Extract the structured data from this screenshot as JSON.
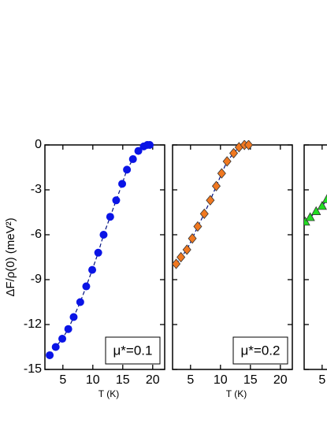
{
  "chart_data": [
    {
      "type": "scatter",
      "ylabel": "ΔF/ρ(0) (meV²)",
      "xlabel": "T (K)",
      "legend": "μ*=0.1",
      "marker": "circle",
      "color": "#0a14e6",
      "xlim": [
        2,
        22
      ],
      "xticks": [
        5,
        10,
        15,
        20
      ],
      "ylim": [
        -15,
        0
      ],
      "yticks": [
        0,
        -3,
        -6,
        -9,
        -12,
        -15
      ],
      "x": [
        2.8,
        3.8,
        4.9,
        5.9,
        6.8,
        7.9,
        8.9,
        9.9,
        10.9,
        11.8,
        12.9,
        13.9,
        14.9,
        15.7,
        16.7,
        17.6,
        18.5,
        19.1,
        19.5
      ],
      "values": [
        -14.05,
        -13.5,
        -12.95,
        -12.3,
        -11.5,
        -10.5,
        -9.45,
        -8.35,
        -7.2,
        -6.0,
        -4.8,
        -3.7,
        -2.6,
        -1.65,
        -0.95,
        -0.4,
        -0.1,
        0,
        0
      ]
    },
    {
      "type": "scatter",
      "xlabel": "T (K)",
      "legend": "μ*=0.2",
      "marker": "diamond",
      "color": "#f07820",
      "xlim": [
        2,
        22
      ],
      "xticks": [
        5,
        10,
        15,
        20
      ],
      "ylim": [
        -15,
        0
      ],
      "yticks": [
        0,
        -3,
        -6,
        -9,
        -12,
        -15
      ],
      "x": [
        2.6,
        3.4,
        4.4,
        5.3,
        6.2,
        7.3,
        8.3,
        9.3,
        10.2,
        11.1,
        12.2,
        13.1,
        14.0,
        14.7
      ],
      "values": [
        -7.95,
        -7.5,
        -7.0,
        -6.25,
        -5.45,
        -4.6,
        -3.7,
        -2.75,
        -1.9,
        -1.1,
        -0.55,
        -0.15,
        0,
        0
      ]
    },
    {
      "type": "scatter",
      "marker": "triangle",
      "color": "#22dd22",
      "xlim": [
        2,
        22
      ],
      "xticks": [
        5
      ],
      "ylim": [
        -15,
        0
      ],
      "yticks": [
        0,
        -3,
        -6,
        -9,
        -12,
        -15
      ],
      "x": [
        2.2,
        3.0,
        4.0,
        5.0,
        5.8
      ],
      "values": [
        -5.15,
        -4.85,
        -4.45,
        -4.1,
        -3.65
      ]
    }
  ]
}
